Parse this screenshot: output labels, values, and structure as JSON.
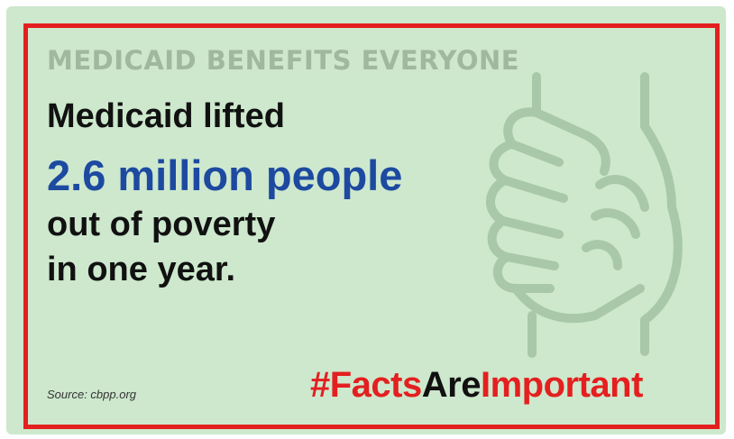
{
  "graphic": {
    "headline": "MEDICAID BENEFITS EVERYONE",
    "statement": {
      "line1": "Medicaid lifted",
      "line2": "2.6 million people",
      "line3": "out of poverty",
      "line4": "in one year."
    },
    "source": "Source: cbpp.org",
    "hashtag": {
      "part1": "#Facts",
      "part2": "Are",
      "part3": "Important"
    },
    "illustration": "holding-hands-icon"
  },
  "colors": {
    "background": "#cde8cd",
    "border": "#e41f1f",
    "headline": "#9fb89f",
    "highlight": "#1d4aa0",
    "hashtag_red": "#e41f1f",
    "text": "#111111"
  }
}
